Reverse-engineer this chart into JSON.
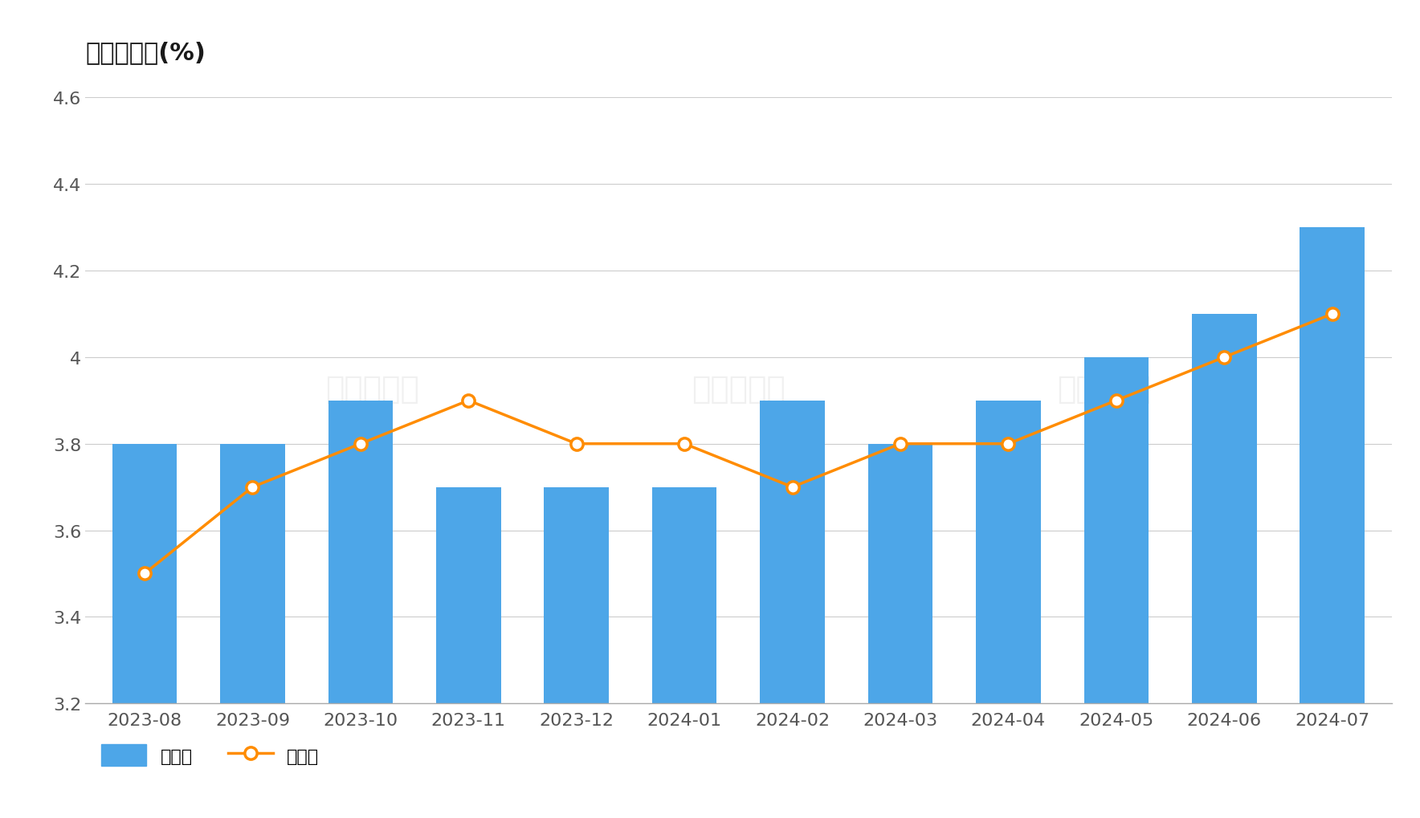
{
  "title": "美国失业率(%)",
  "categories": [
    "2023-08",
    "2023-09",
    "2023-10",
    "2023-11",
    "2023-12",
    "2024-01",
    "2024-02",
    "2024-03",
    "2024-04",
    "2024-05",
    "2024-06",
    "2024-07"
  ],
  "actual_values": [
    3.8,
    3.8,
    3.9,
    3.7,
    3.7,
    3.7,
    3.9,
    3.8,
    3.9,
    4.0,
    4.1,
    4.3
  ],
  "forecast_values": [
    3.5,
    3.7,
    3.8,
    3.9,
    3.8,
    3.8,
    3.7,
    3.8,
    3.8,
    3.9,
    4.0,
    4.1
  ],
  "bar_color": "#4DA6E8",
  "line_color": "#FF8C00",
  "marker_color": "#FF8C00",
  "marker_face_color": "#FFFFFF",
  "background_color": "#FFFFFF",
  "ylim": [
    3.2,
    4.6
  ],
  "ytick_values": [
    3.2,
    3.4,
    3.6,
    3.8,
    4.0,
    4.2,
    4.4,
    4.6
  ],
  "ytick_labels": [
    "3.2",
    "3.4",
    "3.6",
    "3.8",
    "4",
    "4.2",
    "4.4",
    "4.6"
  ],
  "grid_color": "#CCCCCC",
  "title_fontsize": 22,
  "tick_fontsize": 16,
  "legend_fontsize": 16,
  "legend_actual": "实际值",
  "legend_forecast": "预测值",
  "text_color": "#555555"
}
